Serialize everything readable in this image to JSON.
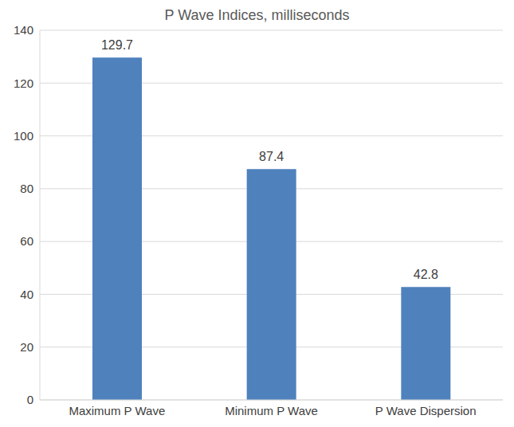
{
  "chart_data": {
    "type": "bar",
    "title": "P Wave Indices, milliseconds",
    "categories": [
      "Maximum P Wave",
      "Minimum P Wave",
      "P Wave Dispersion"
    ],
    "values": [
      129.7,
      87.4,
      42.8
    ],
    "color": "#4f81bd",
    "ylim": [
      0,
      140
    ],
    "yticks": [
      0,
      20,
      40,
      60,
      80,
      100,
      120,
      140
    ],
    "grid": true,
    "data_labels": true
  }
}
